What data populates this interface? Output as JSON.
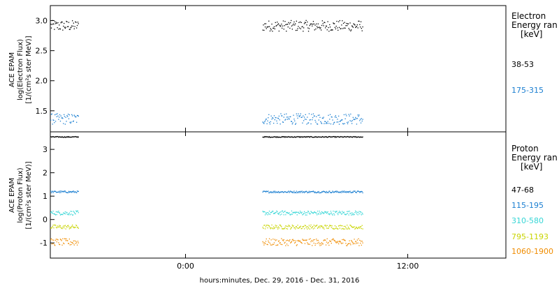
{
  "chart_data": [
    {
      "type": "scatter",
      "panel": "electron",
      "ylabel_lines": [
        "ACE EPAM",
        "log(Electron Flux)",
        "[1/(cm²s ster MeV)]"
      ],
      "yticks": [
        1.5,
        2.0,
        2.5,
        3.0
      ],
      "ylim": [
        1.15,
        3.25
      ],
      "legend_title_lines": [
        "Electron",
        "Energy ran",
        "[keV]"
      ],
      "gaps": [
        [
          -14.6,
          -11.6
        ],
        [
          8.3,
          19.1
        ]
      ],
      "series": [
        {
          "name": "38-53",
          "color": "#000000",
          "y_mean": 2.92,
          "y_spread": 0.09
        },
        {
          "name": "175-315",
          "color": "#1b7fd1",
          "y_mean": 1.37,
          "y_spread": 0.09
        }
      ]
    },
    {
      "type": "scatter",
      "panel": "proton",
      "ylabel_lines": [
        "ACE EPAM",
        "log(Proton Flux)",
        "[1/(cm²s ster MeV)]"
      ],
      "yticks": [
        -1,
        0,
        1,
        2,
        3
      ],
      "ylim": [
        -1.65,
        3.75
      ],
      "legend_title_lines": [
        "Proton",
        "Energy ran",
        "[keV]"
      ],
      "gaps": [
        [
          -14.6,
          -11.6
        ],
        [
          8.3,
          19.1
        ]
      ],
      "series": [
        {
          "name": "47-68",
          "color": "#000000",
          "y_mean": 3.55,
          "y_spread": 0.02
        },
        {
          "name": "115-195",
          "color": "#1b7fd1",
          "y_mean": 1.2,
          "y_spread": 0.04
        },
        {
          "name": "310-580",
          "color": "#36d6d6",
          "y_mean": 0.3,
          "y_spread": 0.09
        },
        {
          "name": "795-1193",
          "color": "#c8d400",
          "y_mean": -0.3,
          "y_spread": 0.09
        },
        {
          "name": "1060-1900",
          "color": "#f08c00",
          "y_mean": -0.95,
          "y_spread": 0.15
        }
      ]
    }
  ],
  "xaxis": {
    "label": "hours:minutes, Dec. 29, 2016 - Dec. 31, 2016",
    "ticks": [
      "0:00",
      "12:00",
      "0:00"
    ],
    "tick_hours": [
      0,
      24,
      48
    ],
    "xlim": [
      -14.6,
      34.6
    ]
  }
}
